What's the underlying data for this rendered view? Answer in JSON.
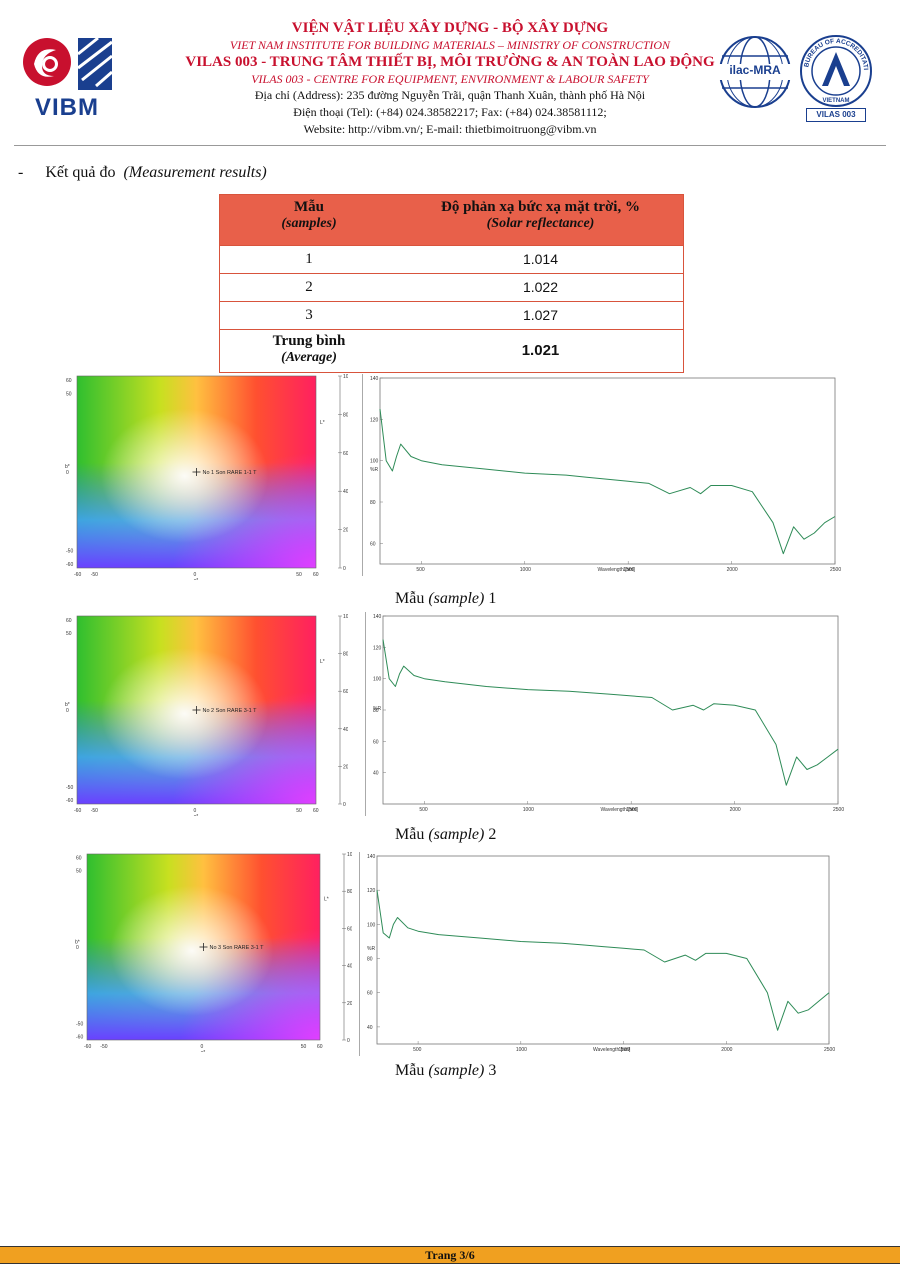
{
  "header": {
    "line1": "VIỆN VẬT LIỆU XÂY DỰNG - BỘ XÂY DỰNG",
    "line2": "VIET NAM INSTITUTE FOR BUILDING MATERIALS – MINISTRY OF CONSTRUCTION",
    "line3": "VILAS 003 - TRUNG TÂM THIẾT BỊ, MÔI TRƯỜNG & AN TOÀN LAO ĐỘNG",
    "line4": "VILAS 003 - CENTRE FOR EQUIPMENT, ENVIRONMENT & LABOUR SAFETY",
    "line5": "Địa chỉ (Address): 235 đường Nguyễn Trãi, quận Thanh Xuân, thành phố Hà Nội",
    "line6": "Điện thoại (Tel): (+84) 024.38582217;    Fax: (+84) 024.38581112;",
    "line7": "Website: http://vibm.vn/;    E-mail: thietbimoitruong@vibm.vn",
    "logo_text": "VIBM",
    "ilac_text": "ilac-MRA",
    "boa_ring_text": "BUREAU OF ACCREDITATION",
    "boa_country": "VIETNAM",
    "boa_label": "VILAS 003"
  },
  "section": {
    "bullet": "-",
    "title": "Kết quả đo",
    "title_en": "(Measurement results)"
  },
  "table": {
    "col1_head": "Mẫu",
    "col1_head_en": "(samples)",
    "col2_head": "Độ phản xạ bức xạ mặt trời, %",
    "col2_head_en": "(Solar reflectance)",
    "rows": [
      {
        "sample": "1",
        "value": "1.014"
      },
      {
        "sample": "2",
        "value": "1.022"
      },
      {
        "sample": "3",
        "value": "1.027"
      }
    ],
    "avg_label": "Trung bình",
    "avg_label_en": "(Average)",
    "avg_value": "1.021"
  },
  "samples": [
    {
      "caption_vi": "Mẫu",
      "caption_en": "(sample)",
      "caption_num": "1",
      "marker_label": "No 1 Son RARE 1-1 T"
    },
    {
      "caption_vi": "Mẫu",
      "caption_en": "(sample)",
      "caption_num": "2",
      "marker_label": "No 2 Son RARE 3-1 T"
    },
    {
      "caption_vi": "Mẫu",
      "caption_en": "(sample)",
      "caption_num": "3",
      "marker_label": "No 3 Son RARE 3-1 T"
    }
  ],
  "chart_data": [
    {
      "type": "line",
      "xlabel": "Wavelength [nm]",
      "ylabel": "%R",
      "xlim": [
        300,
        2500
      ],
      "ylim": [
        50,
        140
      ],
      "x_ticks": [
        "500",
        "1000",
        "1500",
        "2000",
        "2500"
      ],
      "y_ticks": [
        "60",
        "80",
        "100",
        "120",
        "140"
      ],
      "x": [
        300,
        330,
        360,
        380,
        400,
        450,
        500,
        600,
        800,
        1000,
        1200,
        1300,
        1400,
        1500,
        1600,
        1700,
        1800,
        1850,
        1900,
        2000,
        2100,
        2200,
        2250,
        2300,
        2350,
        2400,
        2450,
        2500
      ],
      "y": [
        125,
        100,
        95,
        102,
        108,
        102,
        100,
        98,
        96,
        94,
        93,
        92,
        91,
        90,
        89,
        84,
        87,
        84,
        88,
        88,
        85,
        70,
        55,
        68,
        62,
        65,
        70,
        73
      ]
    },
    {
      "type": "line",
      "xlabel": "Wavelength [nm]",
      "ylabel": "%R",
      "xlim": [
        300,
        2500
      ],
      "ylim": [
        20,
        140
      ],
      "x_ticks": [
        "500",
        "1000",
        "1500",
        "2000",
        "2500"
      ],
      "y_ticks": [
        "40",
        "60",
        "80",
        "100",
        "120",
        "140"
      ],
      "x": [
        300,
        330,
        360,
        380,
        400,
        450,
        500,
        600,
        800,
        1000,
        1200,
        1300,
        1400,
        1500,
        1600,
        1700,
        1800,
        1850,
        1900,
        2000,
        2100,
        2200,
        2250,
        2300,
        2350,
        2400,
        2450,
        2500
      ],
      "y": [
        125,
        100,
        95,
        103,
        108,
        102,
        100,
        98,
        95,
        93,
        92,
        91,
        90,
        89,
        88,
        80,
        83,
        80,
        84,
        83,
        80,
        58,
        32,
        50,
        42,
        45,
        50,
        55
      ]
    },
    {
      "type": "line",
      "xlabel": "Wavelength [nm]",
      "ylabel": "%R",
      "xlim": [
        300,
        2500
      ],
      "ylim": [
        30,
        140
      ],
      "x_ticks": [
        "500",
        "1000",
        "1500",
        "2000",
        "2500"
      ],
      "y_ticks": [
        "40",
        "60",
        "80",
        "100",
        "120",
        "140"
      ],
      "x": [
        300,
        330,
        360,
        380,
        400,
        450,
        500,
        600,
        800,
        1000,
        1200,
        1300,
        1400,
        1500,
        1600,
        1700,
        1800,
        1850,
        1900,
        2000,
        2100,
        2200,
        2250,
        2300,
        2350,
        2400,
        2450,
        2500
      ],
      "y": [
        120,
        95,
        92,
        100,
        104,
        98,
        96,
        94,
        92,
        90,
        89,
        88,
        87,
        86,
        85,
        78,
        82,
        79,
        83,
        83,
        80,
        60,
        38,
        55,
        48,
        50,
        55,
        60
      ]
    }
  ],
  "colorspace": {
    "a_label": "a*",
    "b_label": "b*",
    "l_label": "L*",
    "a_ticks": [
      "-60",
      "-50",
      "0",
      "50",
      "60"
    ],
    "b_ticks": [
      "60",
      "50",
      "0",
      "-50",
      "-60"
    ],
    "l_ticks": [
      "100",
      "80",
      "60",
      "40",
      "20",
      "0"
    ]
  },
  "footer": {
    "page": "Trang 3/6"
  }
}
